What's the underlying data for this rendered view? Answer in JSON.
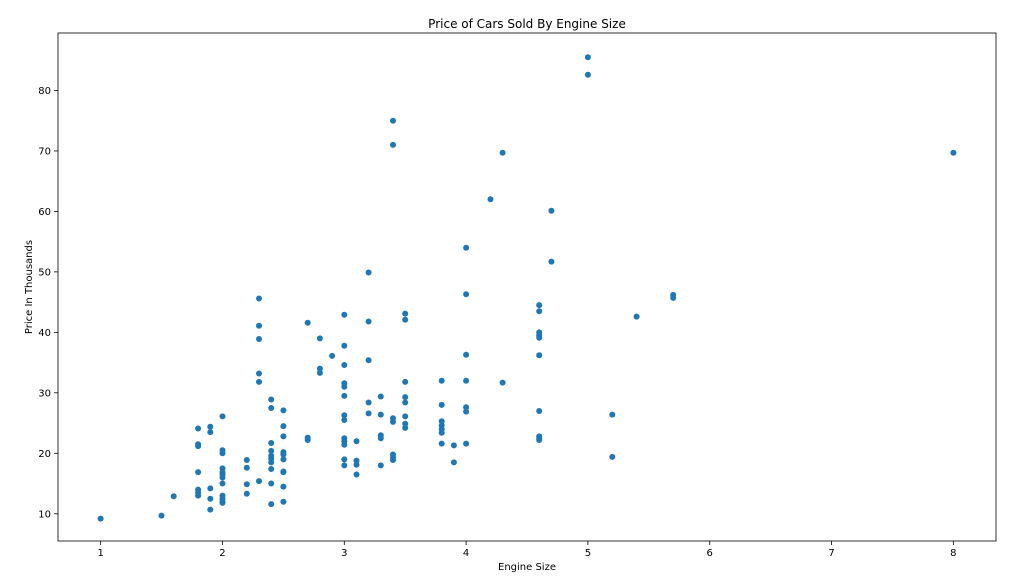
{
  "chart_data": {
    "type": "scatter",
    "title": "Price of Cars Sold By Engine Size",
    "xlabel": "Engine Size",
    "ylabel": "Price In Thousands",
    "xlim": [
      0.65,
      8.35
    ],
    "ylim": [
      5.5,
      89.5
    ],
    "xticks": [
      1,
      2,
      3,
      4,
      5,
      6,
      7,
      8
    ],
    "yticks": [
      10,
      20,
      30,
      40,
      50,
      60,
      70,
      80
    ],
    "grid": false,
    "legend": "none",
    "marker_color": "#1f77b4",
    "series": [
      {
        "points": [
          [
            1.0,
            9.2
          ],
          [
            1.5,
            9.7
          ],
          [
            1.6,
            12.9
          ],
          [
            1.8,
            24.1
          ],
          [
            1.8,
            21.5
          ],
          [
            1.8,
            21.2
          ],
          [
            1.8,
            16.9
          ],
          [
            1.8,
            14.0
          ],
          [
            1.8,
            13.5
          ],
          [
            1.8,
            13.0
          ],
          [
            1.9,
            24.4
          ],
          [
            1.9,
            23.5
          ],
          [
            1.9,
            14.2
          ],
          [
            1.9,
            12.5
          ],
          [
            1.9,
            10.7
          ],
          [
            2.0,
            26.1
          ],
          [
            2.0,
            20.5
          ],
          [
            2.0,
            20.0
          ],
          [
            2.0,
            17.5
          ],
          [
            2.0,
            16.9
          ],
          [
            2.0,
            16.5
          ],
          [
            2.0,
            16.0
          ],
          [
            2.0,
            15.0
          ],
          [
            2.0,
            13.0
          ],
          [
            2.0,
            12.5
          ],
          [
            2.0,
            12.0
          ],
          [
            2.0,
            11.8
          ],
          [
            2.2,
            18.9
          ],
          [
            2.2,
            17.6
          ],
          [
            2.2,
            14.9
          ],
          [
            2.2,
            13.3
          ],
          [
            2.3,
            45.6
          ],
          [
            2.3,
            41.1
          ],
          [
            2.3,
            38.9
          ],
          [
            2.3,
            33.2
          ],
          [
            2.3,
            31.8
          ],
          [
            2.3,
            15.4
          ],
          [
            2.4,
            28.9
          ],
          [
            2.4,
            27.5
          ],
          [
            2.4,
            21.7
          ],
          [
            2.4,
            20.4
          ],
          [
            2.4,
            19.6
          ],
          [
            2.4,
            19.1
          ],
          [
            2.4,
            18.5
          ],
          [
            2.4,
            17.4
          ],
          [
            2.4,
            15.0
          ],
          [
            2.4,
            11.6
          ],
          [
            2.5,
            27.1
          ],
          [
            2.5,
            24.5
          ],
          [
            2.5,
            22.8
          ],
          [
            2.5,
            20.2
          ],
          [
            2.5,
            19.8
          ],
          [
            2.5,
            19.0
          ],
          [
            2.5,
            17.0
          ],
          [
            2.5,
            16.9
          ],
          [
            2.5,
            14.5
          ],
          [
            2.5,
            12.0
          ],
          [
            2.7,
            41.6
          ],
          [
            2.7,
            22.6
          ],
          [
            2.7,
            22.2
          ],
          [
            2.8,
            39.0
          ],
          [
            2.8,
            34.0
          ],
          [
            2.8,
            33.3
          ],
          [
            2.9,
            36.1
          ],
          [
            3.0,
            42.9
          ],
          [
            3.0,
            37.8
          ],
          [
            3.0,
            34.6
          ],
          [
            3.0,
            31.6
          ],
          [
            3.0,
            31.0
          ],
          [
            3.0,
            29.5
          ],
          [
            3.0,
            26.3
          ],
          [
            3.0,
            25.5
          ],
          [
            3.0,
            22.5
          ],
          [
            3.0,
            22.0
          ],
          [
            3.0,
            21.4
          ],
          [
            3.0,
            19.0
          ],
          [
            3.0,
            18.0
          ],
          [
            3.1,
            22.0
          ],
          [
            3.1,
            18.8
          ],
          [
            3.1,
            18.1
          ],
          [
            3.1,
            16.5
          ],
          [
            3.2,
            49.9
          ],
          [
            3.2,
            41.8
          ],
          [
            3.2,
            35.4
          ],
          [
            3.2,
            28.4
          ],
          [
            3.2,
            26.6
          ],
          [
            3.3,
            29.4
          ],
          [
            3.3,
            26.4
          ],
          [
            3.3,
            23.0
          ],
          [
            3.3,
            22.5
          ],
          [
            3.3,
            18.0
          ],
          [
            3.4,
            75.0
          ],
          [
            3.4,
            71.0
          ],
          [
            3.4,
            25.8
          ],
          [
            3.4,
            25.2
          ],
          [
            3.4,
            19.8
          ],
          [
            3.4,
            19.3
          ],
          [
            3.4,
            18.9
          ],
          [
            3.5,
            43.1
          ],
          [
            3.5,
            42.1
          ],
          [
            3.5,
            31.8
          ],
          [
            3.5,
            29.3
          ],
          [
            3.5,
            28.4
          ],
          [
            3.5,
            26.1
          ],
          [
            3.5,
            24.9
          ],
          [
            3.5,
            24.2
          ],
          [
            3.8,
            32.0
          ],
          [
            3.8,
            28.0
          ],
          [
            3.8,
            25.3
          ],
          [
            3.8,
            24.6
          ],
          [
            3.8,
            24.0
          ],
          [
            3.8,
            23.4
          ],
          [
            3.8,
            21.6
          ],
          [
            3.9,
            21.3
          ],
          [
            3.9,
            18.5
          ],
          [
            4.0,
            54.0
          ],
          [
            4.0,
            46.3
          ],
          [
            4.0,
            36.3
          ],
          [
            4.0,
            32.0
          ],
          [
            4.0,
            27.6
          ],
          [
            4.0,
            26.9
          ],
          [
            4.0,
            21.6
          ],
          [
            4.2,
            62.0
          ],
          [
            4.3,
            69.7
          ],
          [
            4.3,
            31.7
          ],
          [
            4.6,
            44.5
          ],
          [
            4.6,
            43.5
          ],
          [
            4.6,
            40.0
          ],
          [
            4.6,
            39.5
          ],
          [
            4.6,
            39.1
          ],
          [
            4.6,
            36.2
          ],
          [
            4.6,
            27.0
          ],
          [
            4.6,
            22.8
          ],
          [
            4.6,
            22.5
          ],
          [
            4.6,
            22.2
          ],
          [
            4.7,
            60.1
          ],
          [
            4.7,
            51.7
          ],
          [
            5.0,
            85.5
          ],
          [
            5.0,
            82.6
          ],
          [
            5.2,
            26.4
          ],
          [
            5.2,
            19.4
          ],
          [
            5.4,
            42.6
          ],
          [
            5.7,
            46.2
          ],
          [
            5.7,
            45.7
          ],
          [
            8.0,
            69.7
          ]
        ]
      }
    ]
  }
}
